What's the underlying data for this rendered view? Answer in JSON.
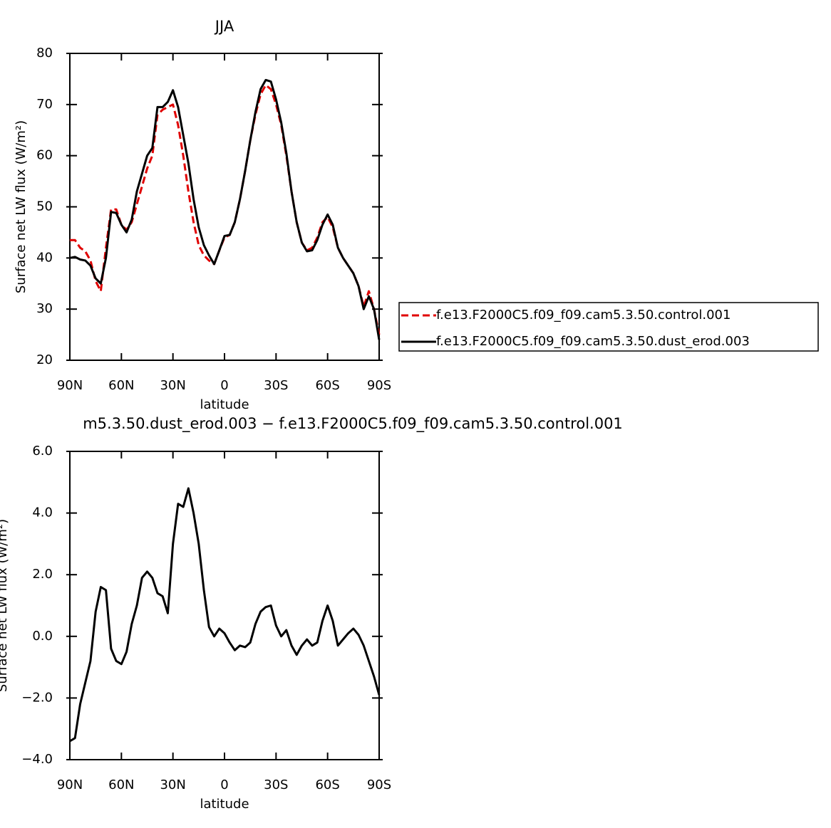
{
  "chart_data": [
    {
      "type": "line",
      "title": "JJA",
      "xlabel": "latitude",
      "ylabel": "Surface net LW flux (W/m²)",
      "x": [
        90,
        87,
        84,
        81,
        78,
        75,
        72,
        69,
        66,
        63,
        60,
        57,
        54,
        51,
        48,
        45,
        42,
        39,
        36,
        33,
        30,
        27,
        24,
        21,
        18,
        15,
        12,
        9,
        6,
        3,
        0,
        -3,
        -6,
        -9,
        -12,
        -15,
        -18,
        -21,
        -24,
        -27,
        -30,
        -33,
        -36,
        -39,
        -42,
        -45,
        -48,
        -51,
        -54,
        -57,
        -60,
        -63,
        -66,
        -69,
        -72,
        -75,
        -78,
        -81,
        -84,
        -87,
        -90
      ],
      "xlim": [
        90,
        -90
      ],
      "xticks": [
        {
          "value": 90,
          "label": "90N"
        },
        {
          "value": 60,
          "label": "60N"
        },
        {
          "value": 30,
          "label": "30N"
        },
        0,
        {
          "value": -30,
          "label": "30S"
        },
        {
          "value": -60,
          "label": "60S"
        },
        {
          "value": -90,
          "label": "90S"
        }
      ],
      "ylim": [
        20,
        80
      ],
      "yticks": [
        20,
        30,
        40,
        50,
        60,
        70,
        80
      ],
      "series": [
        {
          "name": "f.e13.F2000C5.f09_f09.cam5.3.50.control.001",
          "color": "#e00000",
          "linestyle": "dashed",
          "values": [
            43.5,
            43.5,
            42,
            41.3,
            39.5,
            35.5,
            33.5,
            42,
            49.5,
            49.5,
            46.5,
            45.5,
            47,
            50.5,
            54,
            57.5,
            60,
            68,
            69,
            69.5,
            70,
            66,
            60,
            53,
            47,
            42.5,
            40.5,
            39.5,
            38.8,
            41.5,
            44,
            44.5,
            47,
            51.5,
            57,
            63,
            68,
            72,
            73.8,
            73,
            70,
            66,
            60,
            53,
            47,
            43,
            41.5,
            42,
            44,
            47,
            48,
            46,
            42,
            40,
            38.5,
            37,
            34.5,
            30.5,
            33.5,
            30,
            25
          ]
        },
        {
          "name": "f.e13.F2000C5.f09_f09.cam5.3.50.dust_erod.003",
          "color": "#000000",
          "linestyle": "solid",
          "values": [
            40,
            40.2,
            39.7,
            39.5,
            38.5,
            36,
            35,
            40,
            49,
            48.8,
            46.5,
            45,
            47.5,
            53,
            56.5,
            60,
            61.5,
            69.5,
            69.5,
            70.5,
            72.8,
            69.5,
            64,
            58.5,
            51.5,
            46,
            42.5,
            40.5,
            38.8,
            41.5,
            44.3,
            44.5,
            47,
            51.5,
            57,
            63,
            68.5,
            73,
            74.8,
            74.5,
            71,
            66.5,
            60.5,
            53,
            47,
            43,
            41.3,
            41.5,
            43.5,
            46.5,
            48.5,
            46.5,
            42,
            40,
            38.5,
            37,
            34.5,
            30,
            32.5,
            30,
            24
          ]
        }
      ]
    },
    {
      "type": "line",
      "title": "m5.3.50.dust_erod.003 − f.e13.F2000C5.f09_f09.cam5.3.50.control.001",
      "xlabel": "latitude",
      "ylabel": "Surface net LW flux (W/m²)",
      "x": [
        90,
        87,
        84,
        81,
        78,
        75,
        72,
        69,
        66,
        63,
        60,
        57,
        54,
        51,
        48,
        45,
        42,
        39,
        36,
        33,
        30,
        27,
        24,
        21,
        18,
        15,
        12,
        9,
        6,
        3,
        0,
        -3,
        -6,
        -9,
        -12,
        -15,
        -18,
        -21,
        -24,
        -27,
        -30,
        -33,
        -36,
        -39,
        -42,
        -45,
        -48,
        -51,
        -54,
        -57,
        -60,
        -63,
        -66,
        -69,
        -72,
        -75,
        -78,
        -81,
        -84,
        -87,
        -90
      ],
      "xlim": [
        90,
        -90
      ],
      "xticks": [
        {
          "value": 90,
          "label": "90N"
        },
        {
          "value": 60,
          "label": "60N"
        },
        {
          "value": 30,
          "label": "30N"
        },
        0,
        {
          "value": -30,
          "label": "30S"
        },
        {
          "value": -60,
          "label": "60S"
        },
        {
          "value": -90,
          "label": "90S"
        }
      ],
      "ylim": [
        -4,
        6
      ],
      "yticks": [
        {
          "value": -4,
          "label": "−4.0"
        },
        {
          "value": -2,
          "label": "−2.0"
        },
        {
          "value": 0,
          "label": "0.0"
        },
        {
          "value": 2,
          "label": "2.0"
        },
        {
          "value": 4,
          "label": "4.0"
        },
        {
          "value": 6,
          "label": "6.0"
        }
      ],
      "series": [
        {
          "color": "#000000",
          "linestyle": "solid",
          "values": [
            -3.4,
            -3.3,
            -2.2,
            -1.5,
            -0.8,
            0.8,
            1.6,
            1.5,
            -0.4,
            -0.8,
            -0.9,
            -0.5,
            0.4,
            1,
            1.9,
            2.1,
            1.9,
            1.4,
            1.3,
            0.75,
            3,
            4.3,
            4.2,
            4.8,
            4,
            3,
            1.5,
            0.3,
            0,
            0.25,
            0.1,
            -0.2,
            -0.45,
            -0.3,
            -0.35,
            -0.2,
            0.4,
            0.8,
            0.95,
            1,
            0.35,
            0,
            0.2,
            -0.3,
            -0.6,
            -0.3,
            -0.1,
            -0.3,
            -0.2,
            0.5,
            1,
            0.5,
            -0.3,
            -0.1,
            0.1,
            0.25,
            0.05,
            -0.3,
            -0.8,
            -1.3,
            -1.9
          ]
        }
      ]
    }
  ]
}
